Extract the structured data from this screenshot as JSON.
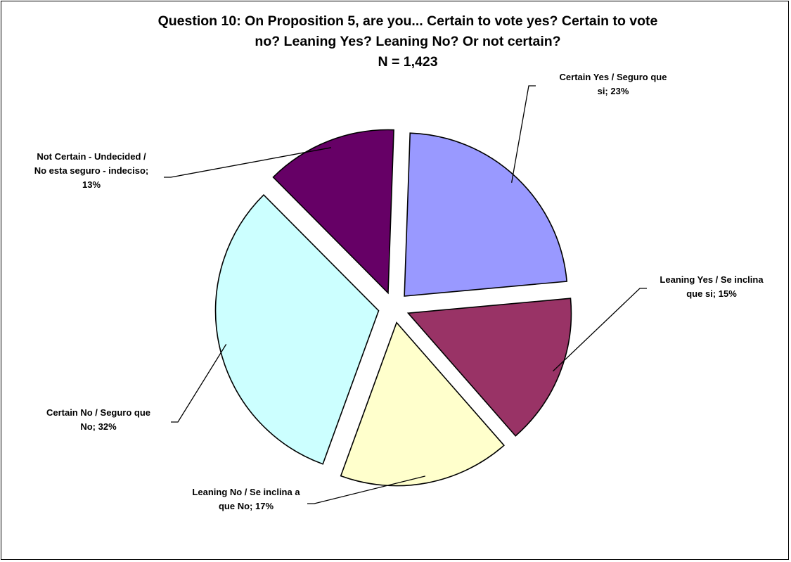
{
  "chart_data": {
    "type": "pie",
    "title_lines": [
      "Question 10: On Proposition 5, are you... Certain to vote yes? Certain to vote",
      "no? Leaning Yes? Leaning No? Or not certain?",
      "N = 1,423"
    ],
    "slices": [
      {
        "name": "Certain Yes / Seguro que si",
        "value": 23,
        "label_lines": [
          "Certain Yes / Seguro que",
          "si; 23%"
        ],
        "color": "#9999FF"
      },
      {
        "name": "Leaning Yes / Se inclina que si",
        "value": 15,
        "label_lines": [
          "Leaning Yes / Se inclina",
          "que si; 15%"
        ],
        "color": "#993366"
      },
      {
        "name": "Leaning No / Se inclina a que No",
        "value": 17,
        "label_lines": [
          "Leaning No / Se inclina a",
          "que No; 17%"
        ],
        "color": "#FFFFCC"
      },
      {
        "name": "Certain No / Seguro que No",
        "value": 32,
        "label_lines": [
          "Certain No / Seguro que",
          "No; 32%"
        ],
        "color": "#CCFFFF"
      },
      {
        "name": "Not Certain - Undecided / No esta seguro - indeciso",
        "value": 13,
        "label_lines": [
          "Not Certain - Undecided /",
          "No esta seguro - indeciso;",
          "13%"
        ],
        "color": "#660066"
      }
    ]
  }
}
